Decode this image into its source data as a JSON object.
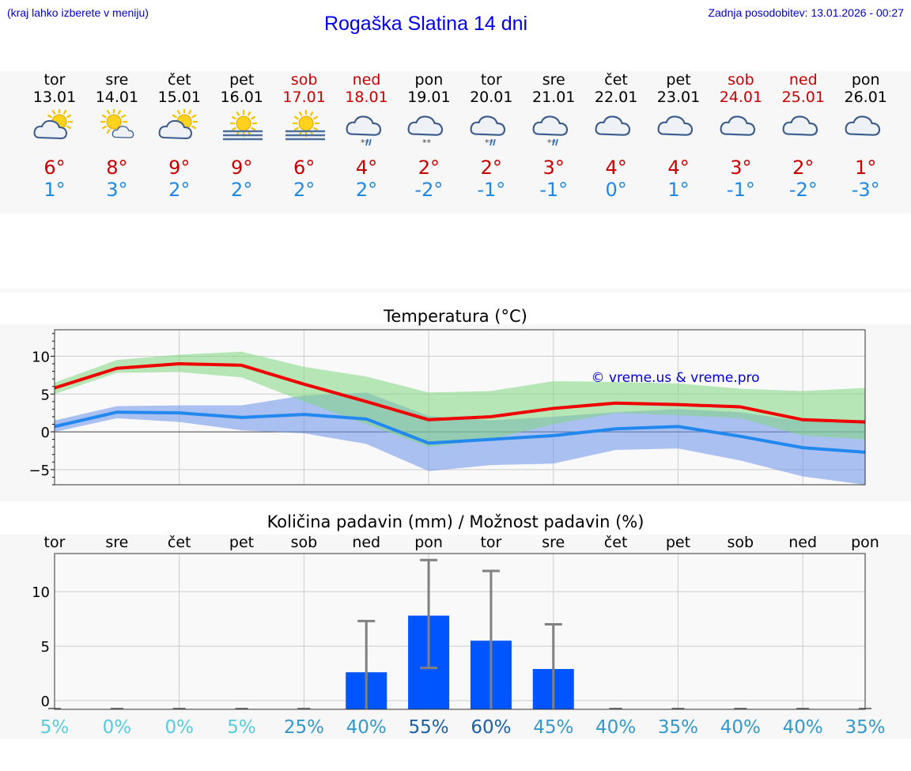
{
  "header": {
    "menu_hint": "(kraj lahko izberete v meniju)",
    "title": "Rogaška Slatina 14 dni",
    "last_update": "Zadnja posodobitev: 13.01.2026 - 00:27"
  },
  "days": [
    {
      "name": "tor",
      "date": "13.01",
      "icon": "sun-cloud-icon",
      "tmax": "6°",
      "tmin": "1°",
      "weekend": false
    },
    {
      "name": "sre",
      "date": "14.01",
      "icon": "sun-small-cloud-icon",
      "tmax": "8°",
      "tmin": "3°",
      "weekend": false
    },
    {
      "name": "čet",
      "date": "15.01",
      "icon": "sun-cloud-icon",
      "tmax": "9°",
      "tmin": "2°",
      "weekend": false
    },
    {
      "name": "pet",
      "date": "16.01",
      "icon": "sun-fog-icon",
      "tmax": "9°",
      "tmin": "2°",
      "weekend": false
    },
    {
      "name": "sob",
      "date": "17.01",
      "icon": "sun-fog-icon",
      "tmax": "6°",
      "tmin": "2°",
      "weekend": true
    },
    {
      "name": "ned",
      "date": "18.01",
      "icon": "cloud-sleet-icon",
      "tmax": "4°",
      "tmin": "2°",
      "weekend": true
    },
    {
      "name": "pon",
      "date": "19.01",
      "icon": "cloud-snow-icon",
      "tmax": "2°",
      "tmin": "-2°",
      "weekend": false
    },
    {
      "name": "tor",
      "date": "20.01",
      "icon": "cloud-sleet-icon",
      "tmax": "2°",
      "tmin": "-1°",
      "weekend": false
    },
    {
      "name": "sre",
      "date": "21.01",
      "icon": "cloud-sleet-icon",
      "tmax": "3°",
      "tmin": "-1°",
      "weekend": false
    },
    {
      "name": "čet",
      "date": "22.01",
      "icon": "cloud-icon",
      "tmax": "4°",
      "tmin": "0°",
      "weekend": false
    },
    {
      "name": "pet",
      "date": "23.01",
      "icon": "cloud-icon",
      "tmax": "4°",
      "tmin": "1°",
      "weekend": false
    },
    {
      "name": "sob",
      "date": "24.01",
      "icon": "cloud-icon",
      "tmax": "3°",
      "tmin": "-1°",
      "weekend": true
    },
    {
      "name": "ned",
      "date": "25.01",
      "icon": "cloud-icon",
      "tmax": "2°",
      "tmin": "-2°",
      "weekend": true
    },
    {
      "name": "pon",
      "date": "26.01",
      "icon": "cloud-icon",
      "tmax": "1°",
      "tmin": "-3°",
      "weekend": false
    }
  ],
  "colors": {
    "weekend": "#cc0000",
    "weekday": "#000000",
    "tmax": "#cc0000",
    "tmin": "#1e88e5"
  },
  "chart_data": [
    {
      "type": "line",
      "title": "Temperatura (°C)",
      "watermark": "© vreme.us & vreme.pro",
      "ylim": [
        -7,
        13.5
      ],
      "yticks": [
        {
          "v": 10,
          "label": "10"
        },
        {
          "v": 5,
          "label": "5"
        },
        {
          "v": 0,
          "label": "0"
        },
        {
          "v": -5,
          "label": "−5"
        }
      ],
      "x": [
        0,
        1,
        2,
        3,
        4,
        5,
        6,
        7,
        8,
        9,
        10,
        11,
        12,
        13
      ],
      "series": [
        {
          "name": "max",
          "color": "#ee0000",
          "values": [
            5.8,
            8.4,
            9.0,
            8.8,
            6.3,
            4.0,
            1.6,
            2.0,
            3.1,
            3.8,
            3.6,
            3.3,
            1.6,
            1.3
          ]
        },
        {
          "name": "min",
          "color": "#2288ee",
          "values": [
            0.7,
            2.6,
            2.5,
            1.9,
            2.3,
            1.7,
            -1.5,
            -1.0,
            -0.5,
            0.4,
            0.7,
            -0.6,
            -2.1,
            -2.7
          ]
        }
      ],
      "bands": [
        {
          "name": "max-range",
          "color": "#7fd67f",
          "low": [
            5.0,
            7.8,
            7.9,
            7.2,
            4.0,
            1.0,
            -2.0,
            -1.0,
            1.0,
            2.5,
            2.2,
            1.8,
            -0.5,
            -1.0
          ],
          "high": [
            6.5,
            9.5,
            10.2,
            10.6,
            8.6,
            7.3,
            5.2,
            5.4,
            6.7,
            6.6,
            6.4,
            5.7,
            5.4,
            5.8
          ]
        },
        {
          "name": "min-range",
          "color": "#6a92ea",
          "low": [
            0.0,
            1.8,
            1.3,
            0.2,
            -0.2,
            -1.6,
            -5.2,
            -4.4,
            -4.2,
            -2.4,
            -2.2,
            -3.8,
            -5.9,
            -7.0
          ],
          "high": [
            1.5,
            3.4,
            3.5,
            3.5,
            4.8,
            5.2,
            2.1,
            1.5,
            2.0,
            2.6,
            3.0,
            2.6,
            1.4,
            1.6
          ]
        }
      ]
    },
    {
      "type": "bar",
      "title": "Količina padavin (mm) / Možnost padavin (%)",
      "categories": [
        "tor",
        "sre",
        "čet",
        "pet",
        "sob",
        "ned",
        "pon",
        "tor",
        "sre",
        "čet",
        "pet",
        "sob",
        "ned",
        "pon"
      ],
      "ylim": [
        -0.8,
        13.5
      ],
      "yticks": [
        {
          "v": 10,
          "label": "10"
        },
        {
          "v": 5,
          "label": "5"
        },
        {
          "v": 0,
          "label": "0"
        }
      ],
      "values": [
        0,
        0,
        0,
        0,
        0,
        2.6,
        7.8,
        5.5,
        2.9,
        0,
        0,
        0,
        0,
        0
      ],
      "error_low": [
        0,
        0,
        0,
        0,
        0,
        0,
        3.0,
        0,
        0,
        0,
        0,
        0,
        0,
        0
      ],
      "error_high": [
        0,
        0,
        0,
        0,
        0,
        7.3,
        12.9,
        11.9,
        7.0,
        0,
        0,
        0,
        0,
        0
      ],
      "bar_color": "#0055ff",
      "chance": [
        "5%",
        "0%",
        "0%",
        "5%",
        "25%",
        "40%",
        "55%",
        "60%",
        "45%",
        "40%",
        "35%",
        "40%",
        "40%",
        "35%"
      ],
      "chance_values": [
        5,
        0,
        0,
        5,
        25,
        40,
        55,
        60,
        45,
        40,
        35,
        40,
        40,
        35
      ]
    }
  ]
}
